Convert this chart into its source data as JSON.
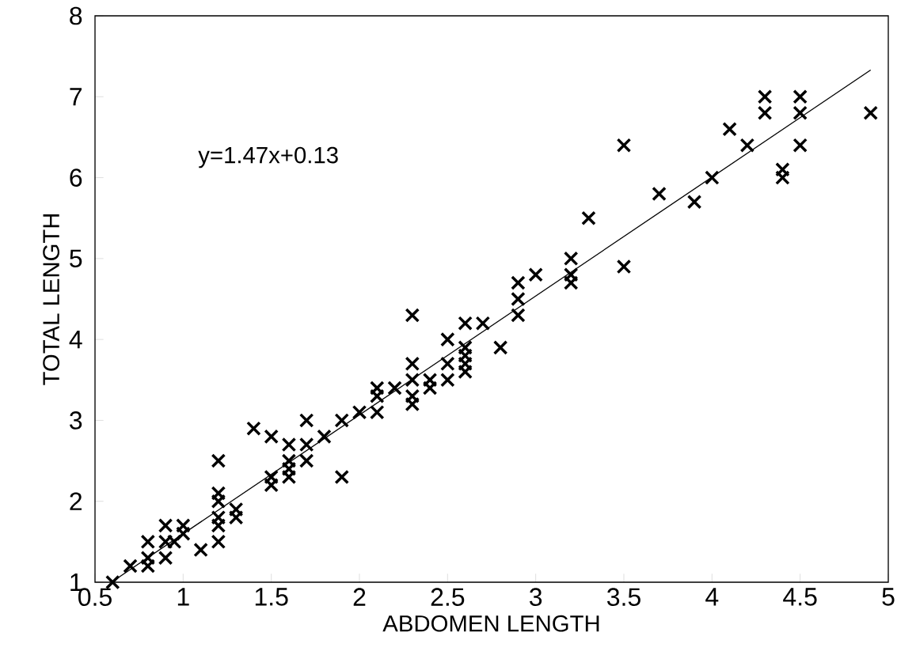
{
  "chart_data": {
    "type": "scatter",
    "xlabel": "ABDOMEN LENGTH",
    "ylabel": "TOTAL LENGTH",
    "annotations": [
      "y=1.47x+0.13"
    ],
    "xlim": [
      0.5,
      5
    ],
    "ylim": [
      1,
      8
    ],
    "xticks": [
      0.5,
      1,
      1.5,
      2,
      2.5,
      3,
      3.5,
      4,
      4.5,
      5
    ],
    "yticks": [
      1,
      2,
      3,
      4,
      5,
      6,
      7,
      8
    ],
    "grid": false,
    "series": [
      {
        "color": "#000000",
        "marker": "cross",
        "x": [
          0.6,
          0.7,
          0.8,
          0.8,
          0.8,
          0.9,
          0.9,
          0.9,
          0.95,
          1.0,
          1.0,
          1.1,
          1.2,
          1.2,
          1.2,
          1.2,
          1.2,
          1.2,
          1.3,
          1.3,
          1.4,
          1.5,
          1.5,
          1.5,
          1.6,
          1.6,
          1.6,
          1.6,
          1.7,
          1.7,
          1.7,
          1.8,
          1.9,
          1.9,
          2.0,
          2.1,
          2.1,
          2.1,
          2.2,
          2.3,
          2.3,
          2.3,
          2.3,
          2.3,
          2.4,
          2.4,
          2.5,
          2.5,
          2.5,
          2.6,
          2.6,
          2.6,
          2.6,
          2.6,
          2.7,
          2.8,
          2.9,
          2.9,
          2.9,
          3.0,
          3.2,
          3.2,
          3.2,
          3.3,
          3.5,
          3.5,
          3.7,
          3.9,
          4.0,
          4.1,
          4.2,
          4.3,
          4.3,
          4.4,
          4.4,
          4.5,
          4.5,
          4.5,
          4.9
        ],
        "values": [
          1.0,
          1.2,
          1.5,
          1.3,
          1.2,
          1.7,
          1.5,
          1.3,
          1.5,
          1.7,
          1.6,
          1.4,
          2.5,
          2.1,
          2.0,
          1.8,
          1.7,
          1.5,
          1.9,
          1.8,
          2.9,
          2.8,
          2.3,
          2.2,
          2.7,
          2.5,
          2.4,
          2.3,
          3.0,
          2.7,
          2.5,
          2.8,
          3.0,
          2.3,
          3.1,
          3.4,
          3.3,
          3.1,
          3.4,
          4.3,
          3.7,
          3.5,
          3.3,
          3.2,
          3.5,
          3.4,
          4.0,
          3.7,
          3.5,
          4.2,
          3.9,
          3.8,
          3.7,
          3.6,
          4.2,
          3.9,
          4.7,
          4.5,
          4.3,
          4.8,
          5.0,
          4.8,
          4.7,
          5.5,
          6.4,
          4.9,
          5.8,
          5.7,
          6.0,
          6.6,
          6.4,
          7.0,
          6.8,
          6.1,
          6.0,
          7.0,
          6.8,
          6.4,
          6.8
        ]
      },
      {
        "type": "line",
        "color": "#000000",
        "line_style": "solid",
        "x": [
          0.6,
          4.9
        ],
        "values": [
          1.01,
          7.33
        ]
      }
    ]
  }
}
